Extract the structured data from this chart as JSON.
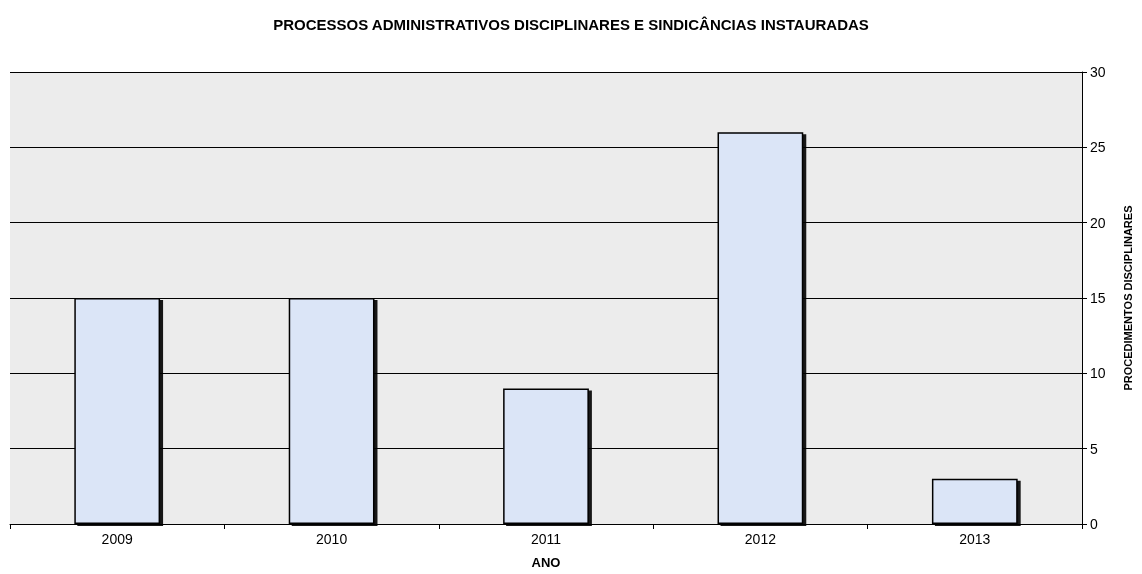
{
  "chart_data": {
    "type": "bar",
    "title": "PROCESSOS ADMINISTRATIVOS DISCIPLINARES E SINDICÂNCIAS INSTAURADAS",
    "xlabel": "ANO",
    "ylabel": "PROCEDIMENTOS DISCIPLINARES",
    "categories": [
      "2009",
      "2010",
      "2011",
      "2012",
      "2013"
    ],
    "values": [
      15,
      15,
      9,
      26,
      3
    ],
    "color": "#dbe5f7",
    "ylim": [
      0,
      30
    ],
    "yticks": [
      0,
      5,
      10,
      15,
      20,
      25,
      30
    ],
    "grid": "y"
  }
}
